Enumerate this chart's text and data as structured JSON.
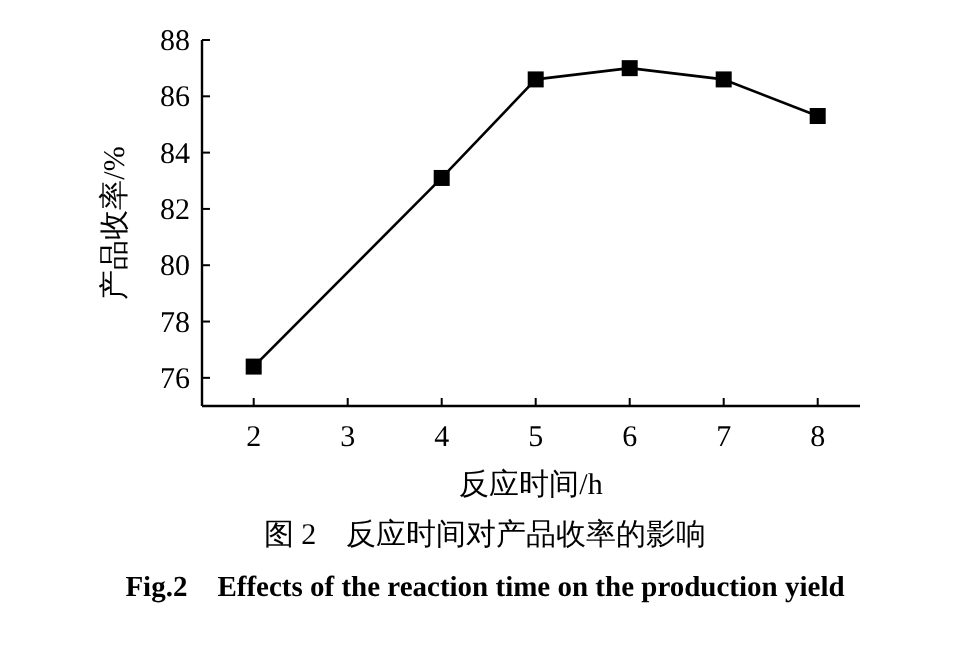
{
  "chart_data": {
    "type": "line",
    "xlabel": "反应时间/h",
    "ylabel": "产品收率/%",
    "x": [
      2,
      4,
      5,
      6,
      7,
      8
    ],
    "series": [
      {
        "color": "#000000",
        "values": [
          76.4,
          83.1,
          86.6,
          87.0,
          86.6,
          85.3
        ]
      }
    ],
    "xlim": [
      1.45,
      8.45
    ],
    "xticks": [
      2,
      3,
      4,
      5,
      6,
      7,
      8
    ],
    "ylim": [
      75,
      88
    ],
    "yticks": [
      76,
      78,
      80,
      82,
      84,
      86,
      88
    ],
    "marker": "square",
    "line_style": "solid",
    "grid": false,
    "annotations": [
      "图 2　反应时间对产品收率的影响",
      "Fig.2　Effects of the reaction time on the production yield"
    ]
  }
}
